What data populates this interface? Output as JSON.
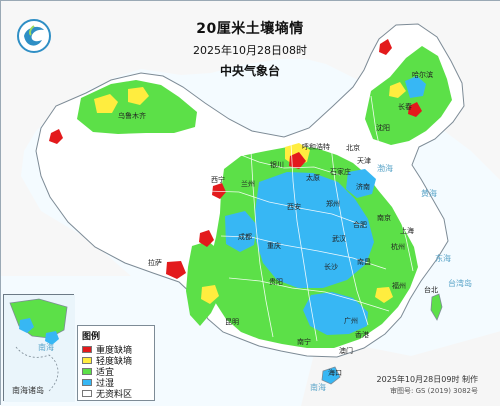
{
  "header": {
    "title": "20厘米土壤墒情",
    "time": "2025年10月28日08时",
    "agency": "中央气象台"
  },
  "legend": {
    "title": "图例",
    "items": [
      {
        "label": "重度缺墒",
        "color": "#e31a1c"
      },
      {
        "label": "轻度缺墒",
        "color": "#ffed3f"
      },
      {
        "label": "适宜",
        "color": "#5ce048"
      },
      {
        "label": "过湿",
        "color": "#37b7f4"
      },
      {
        "label": "无资料区",
        "color": "#ffffff"
      }
    ]
  },
  "inset": {
    "label": "南海诸岛",
    "sea_label": "南海"
  },
  "footer": {
    "issued": "2025年10月28日09时 制作",
    "approval": "审图号: GS (2019) 3082号"
  },
  "map_labels": {
    "cities": [
      "哈尔滨",
      "长春",
      "沈阳",
      "北京",
      "天津",
      "石家庄",
      "太原",
      "济南",
      "郑州",
      "西安",
      "武汉",
      "南京",
      "上海",
      "杭州",
      "福州",
      "长沙",
      "南昌",
      "合肥",
      "贵阳",
      "昆明",
      "成都",
      "重庆",
      "南宁",
      "广州",
      "香港",
      "澳门",
      "海口",
      "兰州",
      "西宁",
      "银川",
      "呼和浩特",
      "乌鲁木齐",
      "拉萨",
      "台北"
    ],
    "seas": [
      "渤海",
      "黄海",
      "东海",
      "台湾岛",
      "南海"
    ]
  }
}
